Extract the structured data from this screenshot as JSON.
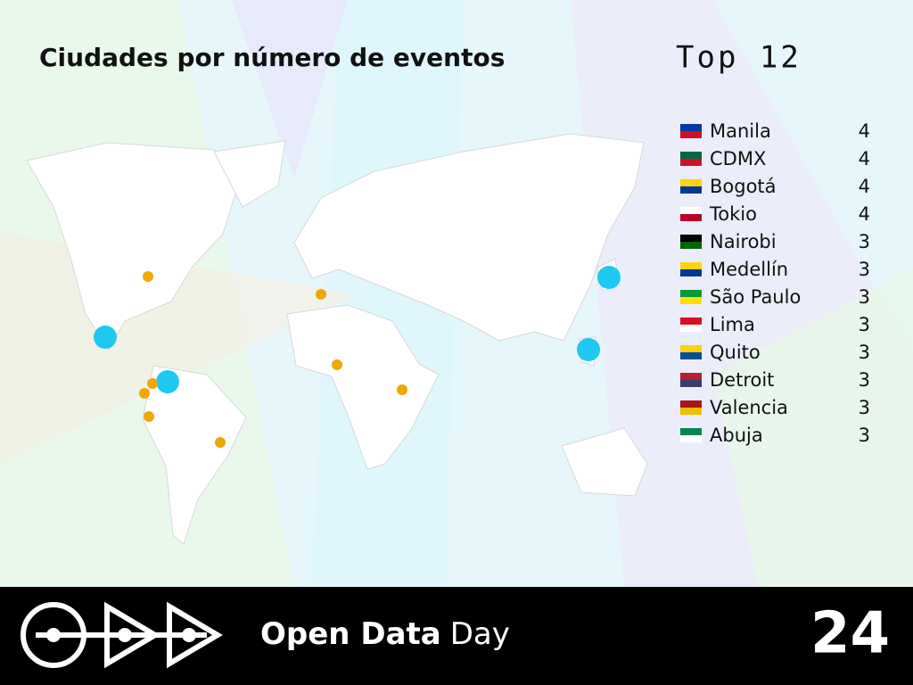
{
  "header": {
    "title": "Ciudades por número de eventos",
    "subtitle": "Top 12"
  },
  "cities": [
    {
      "name": "Manila",
      "count": 4
    },
    {
      "name": "CDMX",
      "count": 4
    },
    {
      "name": "Bogotá",
      "count": 4
    },
    {
      "name": "Tokio",
      "count": 4
    },
    {
      "name": "Nairobi",
      "count": 3
    },
    {
      "name": "Medellín",
      "count": 3
    },
    {
      "name": "São Paulo",
      "count": 3
    },
    {
      "name": "Lima",
      "count": 3
    },
    {
      "name": "Quito",
      "count": 3
    },
    {
      "name": "Detroit",
      "count": 3
    },
    {
      "name": "Valencia",
      "count": 3
    },
    {
      "name": "Abuja",
      "count": 3
    }
  ],
  "footer": {
    "brand_bold": "Open Data",
    "brand_light": "Day",
    "year": "24"
  }
}
